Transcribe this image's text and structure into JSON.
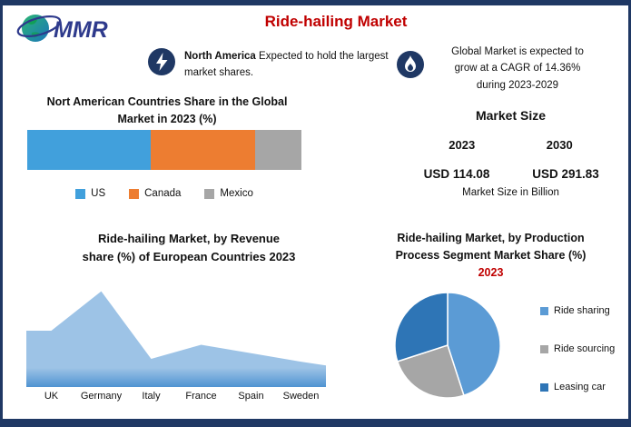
{
  "page": {
    "logo_text": "MMR",
    "title": "Ride-hailing Market",
    "colors": {
      "navy": "#1F3864",
      "accent_red": "#C00000"
    }
  },
  "highlights": {
    "left": {
      "bold": "North America",
      "rest": "Expected to hold the largest market shares."
    },
    "right": "Global Market is expected to grow at a CAGR of 14.36% during 2023-2029",
    "right_lines": [
      "Global Market is expected to",
      "grow at a CAGR of 14.36%",
      "during 2023-2029"
    ]
  },
  "market_size": {
    "title": "Market Size",
    "years": [
      "2023",
      "2030"
    ],
    "values": [
      "USD 114.08",
      "USD 291.83"
    ],
    "unit": "Market Size in Billion"
  },
  "chart_data": [
    {
      "type": "bar",
      "variant": "horizontal-stacked",
      "title": "Nort American Countries Share in the Global Market in 2023 (%)",
      "title_lines": [
        "Nort American Countries Share in the Global",
        "Market in 2023 (%)"
      ],
      "categories": [
        "US",
        "Canada",
        "Mexico"
      ],
      "values": [
        45,
        38,
        17
      ],
      "colors": [
        "#41A0DC",
        "#ED7D31",
        "#A6A6A6"
      ],
      "legend_position": "bottom"
    },
    {
      "type": "area",
      "title": "Ride-hailing Market, by Revenue share (%) of European Countries 2023",
      "title_lines": [
        "Ride-hailing Market, by Revenue",
        "share (%) of European Countries 2023"
      ],
      "categories": [
        "UK",
        "Germany",
        "Italy",
        "France",
        "Spain",
        "Sweden"
      ],
      "values": [
        20,
        34,
        10,
        15,
        12,
        9
      ],
      "ylim": [
        0,
        40
      ],
      "color": "#9DC3E6",
      "grid": false
    },
    {
      "type": "pie",
      "title": "Ride-hailing Market, by Production Process Segment Market Share (%) 2023",
      "title_lines": [
        "Ride-hailing Market, by Production",
        "Process Segment Market Share (%)"
      ],
      "title_year": "2023",
      "categories": [
        "Ride sharing",
        "Ride sourcing",
        "Leasing car"
      ],
      "values": [
        45,
        25,
        30
      ],
      "colors": [
        "#5B9BD5",
        "#A6A6A6",
        "#2E75B6"
      ],
      "legend_position": "right"
    }
  ]
}
